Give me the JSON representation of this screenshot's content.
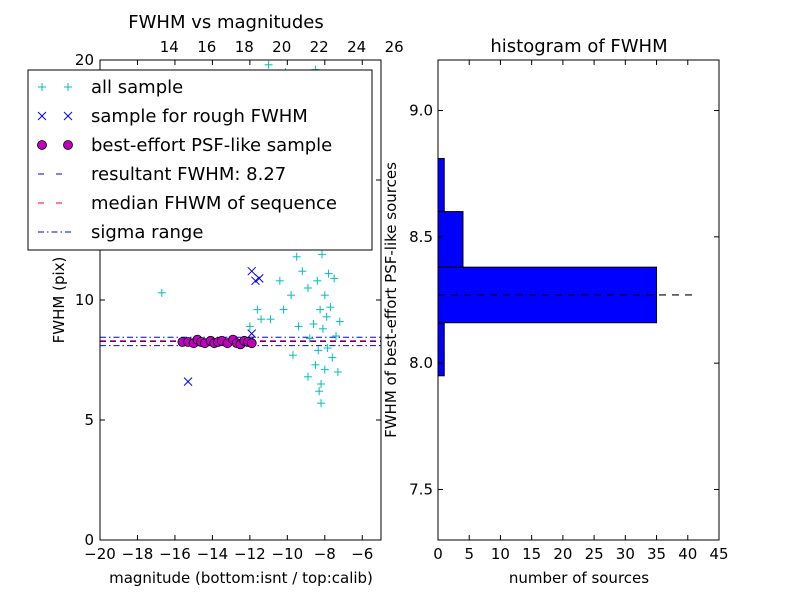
{
  "chart_data": [
    {
      "type": "scatter",
      "title": "FWHM vs magnitudes",
      "xlabel": "magnitude (bottom:isnt / top:calib)",
      "ylabel": "FWHM (pix)",
      "xlim": [
        -20,
        -5
      ],
      "ylim": [
        0,
        20
      ],
      "x_ticks": [
        -20,
        -18,
        -16,
        -14,
        -12,
        -10,
        -8,
        -6
      ],
      "x_tick_labels": [
        "−20",
        "−18",
        "−16",
        "−14",
        "−12",
        "−10",
        "−8",
        "−6"
      ],
      "y_ticks": [
        0,
        5,
        10,
        15,
        20
      ],
      "y_tick_labels": [
        "0",
        "5",
        "10",
        "15",
        "20"
      ],
      "top_axis": {
        "ticks": [
          14,
          16,
          18,
          20,
          22,
          24,
          26
        ],
        "tick_labels": [
          "14",
          "16",
          "18",
          "20",
          "22",
          "24",
          "26"
        ],
        "offset": 30.3
      },
      "legend_position": "top-left",
      "legend": [
        "all sample",
        "sample for rough FWHM",
        "best-effort PSF-like sample",
        "resultant FWHM: 8.27",
        "median FHWM of sequence",
        "sigma range"
      ],
      "series": [
        {
          "name": "all sample",
          "marker": "+",
          "color": "#00bfbf",
          "points": [
            [
              -16.7,
              10.3
            ],
            [
              -12.2,
              8.2
            ],
            [
              -12.0,
              8.9
            ],
            [
              -11.6,
              9.6
            ],
            [
              -11.4,
              9.2
            ],
            [
              -11.2,
              13.7
            ],
            [
              -10.9,
              9.2
            ],
            [
              -10.6,
              12.7
            ],
            [
              -10.4,
              10.8
            ],
            [
              -10.2,
              9.6
            ],
            [
              -10.0,
              14.4
            ],
            [
              -9.8,
              10.2
            ],
            [
              -9.6,
              13.8
            ],
            [
              -9.5,
              11.8
            ],
            [
              -9.4,
              8.9
            ],
            [
              -9.2,
              11.2
            ],
            [
              -9.0,
              14.8
            ],
            [
              -8.9,
              10.5
            ],
            [
              -8.8,
              8.4
            ],
            [
              -8.7,
              12.6
            ],
            [
              -8.6,
              9.0
            ],
            [
              -8.5,
              7.3
            ],
            [
              -8.45,
              15.9
            ],
            [
              -8.4,
              10.8
            ],
            [
              -8.35,
              7.9
            ],
            [
              -8.3,
              13.2
            ],
            [
              -8.25,
              9.6
            ],
            [
              -8.2,
              6.5
            ],
            [
              -8.15,
              11.9
            ],
            [
              -8.1,
              8.8
            ],
            [
              -8.05,
              14.6
            ],
            [
              -8.0,
              10.2
            ],
            [
              -8.0,
              7.1
            ],
            [
              -7.95,
              12.5
            ],
            [
              -7.9,
              9.3
            ],
            [
              -7.85,
              8.0
            ],
            [
              -7.8,
              11.1
            ],
            [
              -7.75,
              13.9
            ],
            [
              -7.7,
              9.7
            ],
            [
              -7.6,
              7.6
            ],
            [
              -7.5,
              10.9
            ],
            [
              -7.4,
              8.5
            ],
            [
              -7.3,
              7.0
            ],
            [
              -7.2,
              9.1
            ],
            [
              -8.2,
              5.7
            ],
            [
              -8.3,
              6.2
            ],
            [
              -8.9,
              6.8
            ],
            [
              -9.7,
              7.7
            ],
            [
              -11.0,
              19.8
            ],
            [
              -10.1,
              19.5
            ],
            [
              -8.5,
              19.6
            ],
            [
              -8.4,
              17.2
            ]
          ]
        },
        {
          "name": "sample for rough FWHM",
          "marker": "x",
          "color": "#0000ff",
          "points": [
            [
              -15.3,
              6.6
            ],
            [
              -12.2,
              12.3
            ],
            [
              -11.9,
              11.2
            ],
            [
              -11.7,
              10.8
            ],
            [
              -11.5,
              10.9
            ],
            [
              -11.9,
              8.6
            ],
            [
              -12.0,
              8.3
            ]
          ]
        },
        {
          "name": "best-effort PSF-like sample",
          "marker": "o",
          "color": "#bf00bf",
          "points": [
            [
              -15.6,
              8.25
            ],
            [
              -15.3,
              8.25
            ],
            [
              -15.0,
              8.2
            ],
            [
              -14.8,
              8.35
            ],
            [
              -14.6,
              8.25
            ],
            [
              -14.4,
              8.2
            ],
            [
              -14.1,
              8.3
            ],
            [
              -13.9,
              8.2
            ],
            [
              -13.7,
              8.25
            ],
            [
              -13.5,
              8.3
            ],
            [
              -13.2,
              8.2
            ],
            [
              -12.9,
              8.35
            ],
            [
              -12.7,
              8.2
            ],
            [
              -12.5,
              8.15
            ],
            [
              -12.3,
              8.3
            ],
            [
              -12.1,
              8.25
            ],
            [
              -11.9,
              8.2
            ]
          ]
        }
      ],
      "hlines": [
        {
          "name": "resultant FWHM: 8.27",
          "y": 8.27,
          "color": "#0000ff",
          "style": "dashed"
        },
        {
          "name": "median FHWM of sequence",
          "y": 8.3,
          "color": "#ff0000",
          "style": "dashed"
        },
        {
          "name": "sigma range",
          "y": [
            8.1,
            8.45
          ],
          "color": "#0000ff",
          "style": "dashdot"
        }
      ]
    },
    {
      "type": "bar",
      "orientation": "horizontal",
      "title": "histogram of FWHM",
      "xlabel": "number of sources",
      "ylabel": "FWHM of best-effort PSF-like sources",
      "xlim": [
        0,
        45
      ],
      "ylim": [
        7.3,
        9.2
      ],
      "x_ticks": [
        0,
        5,
        10,
        15,
        20,
        25,
        30,
        35,
        40,
        45
      ],
      "x_tick_labels": [
        "0",
        "5",
        "10",
        "15",
        "20",
        "25",
        "30",
        "35",
        "40",
        "45"
      ],
      "y_ticks": [
        7.5,
        8.0,
        8.5,
        9.0
      ],
      "y_tick_labels": [
        "7.5",
        "8.0",
        "8.5",
        "9.0"
      ],
      "bar_color": "#0000ff",
      "bins": [
        {
          "low": 7.95,
          "high": 8.16,
          "count": 1
        },
        {
          "low": 8.16,
          "high": 8.38,
          "count": 35
        },
        {
          "low": 8.38,
          "high": 8.6,
          "count": 4
        },
        {
          "low": 8.6,
          "high": 8.81,
          "count": 1
        }
      ],
      "reference_line": {
        "y": 8.27,
        "x_extent": 41,
        "style": "dashed",
        "color": "#000000"
      }
    }
  ]
}
